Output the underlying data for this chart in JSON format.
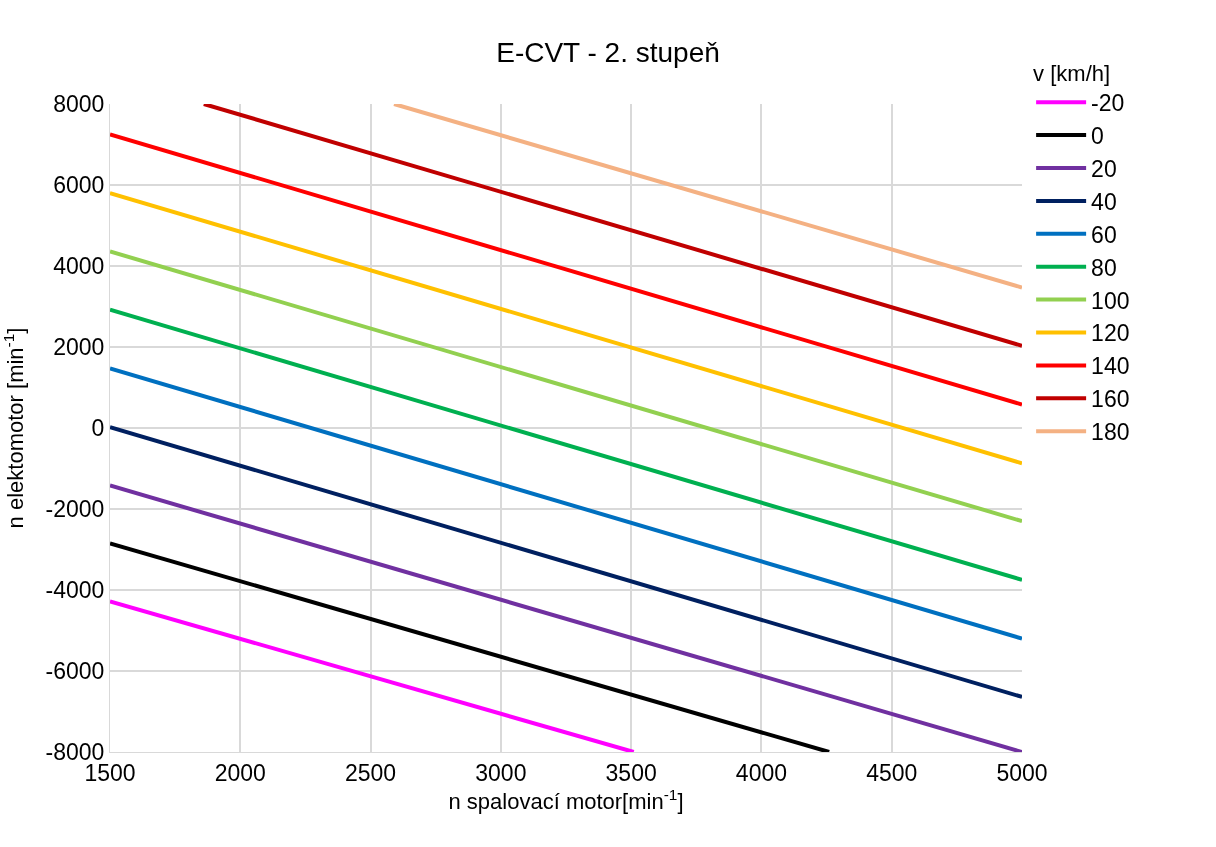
{
  "chart_data": {
    "type": "line",
    "title": "E-CVT - 2. stupeň",
    "xlabel": "n spalovací motor[min$^{-1}$]",
    "ylabel": "n elektomotor [min$^{-1}$]",
    "legend_title": "v [km/h]",
    "xlim": [
      1500,
      5000
    ],
    "xticks": [
      1500,
      2000,
      2500,
      3000,
      3500,
      4000,
      4500,
      5000
    ],
    "ylim": [
      -8000,
      8000
    ],
    "yticks": [
      -8000,
      -6000,
      -4000,
      -2000,
      0,
      2000,
      4000,
      6000,
      8000
    ],
    "grid": true,
    "legend": "right",
    "marker": "none",
    "line_style": "solid",
    "series": [
      {
        "name": "-20",
        "color": "#ff00ff",
        "x": [
          1500,
          3510
        ],
        "values": [
          -4280,
          -8000
        ]
      },
      {
        "name": "0",
        "color": "#000000",
        "x": [
          1500,
          4260
        ],
        "values": [
          -2850,
          -8000
        ]
      },
      {
        "name": "20",
        "color": "#7030a0",
        "x": [
          1500,
          5000
        ],
        "values": [
          -1420,
          -8000
        ]
      },
      {
        "name": "40",
        "color": "#002060",
        "x": [
          1500,
          5000
        ],
        "values": [
          20,
          -6640
        ]
      },
      {
        "name": "60",
        "color": "#0070c0",
        "x": [
          1500,
          5000
        ],
        "values": [
          1470,
          -5200
        ]
      },
      {
        "name": "80",
        "color": "#00b050",
        "x": [
          1500,
          5000
        ],
        "values": [
          2920,
          -3750
        ]
      },
      {
        "name": "100",
        "color": "#92d050",
        "x": [
          1500,
          5000
        ],
        "values": [
          4360,
          -2300
        ]
      },
      {
        "name": "120",
        "color": "#ffc000",
        "x": [
          1500,
          5000
        ],
        "values": [
          5800,
          -870
        ]
      },
      {
        "name": "140",
        "color": "#ff0000",
        "x": [
          1500,
          5000
        ],
        "values": [
          7250,
          580
        ]
      },
      {
        "name": "160",
        "color": "#c00000",
        "x": [
          1860,
          5000
        ],
        "values": [
          8000,
          2030
        ]
      },
      {
        "name": "180",
        "color": "#f4b183",
        "x": [
          2590,
          5000
        ],
        "values": [
          8000,
          3470
        ]
      }
    ]
  }
}
